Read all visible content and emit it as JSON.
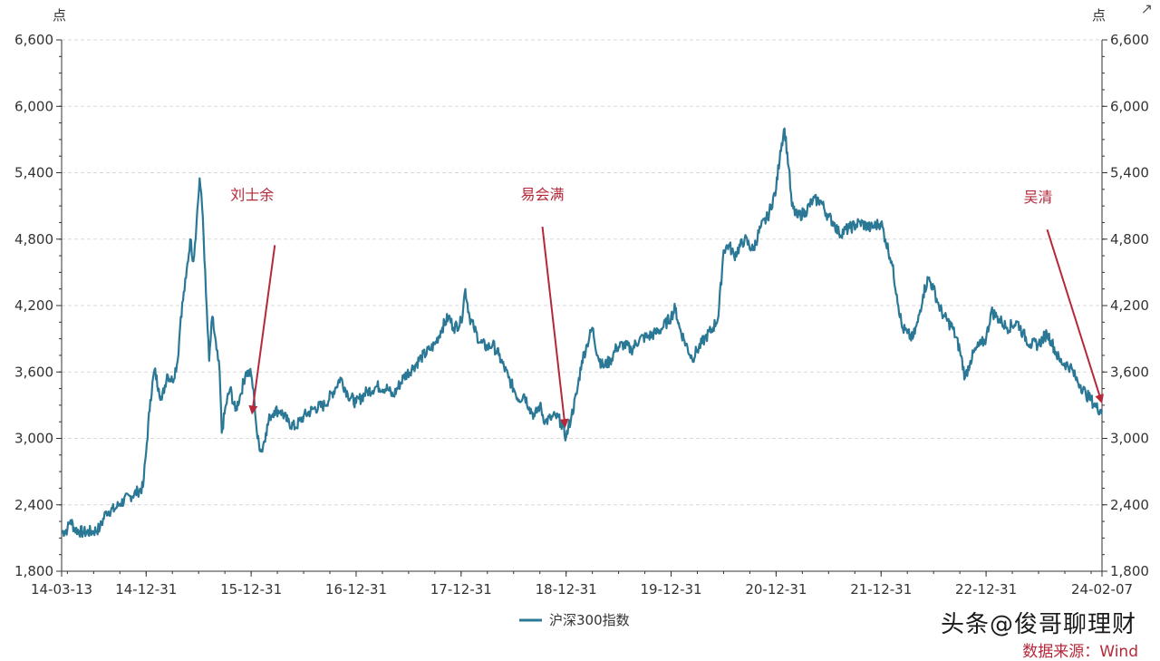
{
  "chart_data": {
    "type": "line",
    "title": "",
    "unit_left": "点",
    "unit_right": "点",
    "ylim": [
      1800,
      6600
    ],
    "yticks": [
      1800,
      2400,
      3000,
      3600,
      4200,
      4800,
      5400,
      6000,
      6600
    ],
    "ytick_labels": [
      "1,800",
      "2,400",
      "3,000",
      "3,600",
      "4,200",
      "4,800",
      "5,400",
      "6,000",
      "6,600"
    ],
    "xlim": [
      2014.195,
      2024.104
    ],
    "xticks": [
      2014.195,
      2015.0,
      2016.0,
      2017.0,
      2018.0,
      2019.0,
      2020.0,
      2021.0,
      2022.0,
      2023.0,
      2024.104
    ],
    "xtick_labels": [
      "14-03-13",
      "14-12-31",
      "15-12-31",
      "16-12-31",
      "17-12-31",
      "18-12-31",
      "19-12-31",
      "20-12-31",
      "21-12-31",
      "22-12-31",
      "24-02-07"
    ],
    "grid": true,
    "legend": "bottom-center",
    "series": [
      {
        "name": "沪深300指数",
        "color": "#2a7896",
        "points": [
          [
            2014.195,
            2150
          ],
          [
            2014.25,
            2180
          ],
          [
            2014.28,
            2260
          ],
          [
            2014.32,
            2180
          ],
          [
            2014.4,
            2150
          ],
          [
            2014.5,
            2160
          ],
          [
            2014.56,
            2190
          ],
          [
            2014.62,
            2340
          ],
          [
            2014.7,
            2360
          ],
          [
            2014.75,
            2410
          ],
          [
            2014.85,
            2480
          ],
          [
            2014.92,
            2520
          ],
          [
            2014.97,
            2560
          ],
          [
            2015.0,
            2880
          ],
          [
            2015.04,
            3350
          ],
          [
            2015.08,
            3620
          ],
          [
            2015.12,
            3450
          ],
          [
            2015.15,
            3350
          ],
          [
            2015.2,
            3580
          ],
          [
            2015.25,
            3520
          ],
          [
            2015.3,
            3700
          ],
          [
            2015.33,
            4100
          ],
          [
            2015.38,
            4450
          ],
          [
            2015.42,
            4800
          ],
          [
            2015.45,
            4600
          ],
          [
            2015.48,
            4950
          ],
          [
            2015.51,
            5350
          ],
          [
            2015.54,
            5000
          ],
          [
            2015.57,
            4300
          ],
          [
            2015.6,
            3700
          ],
          [
            2015.63,
            4100
          ],
          [
            2015.67,
            3800
          ],
          [
            2015.7,
            3600
          ],
          [
            2015.72,
            3050
          ],
          [
            2015.76,
            3300
          ],
          [
            2015.8,
            3450
          ],
          [
            2015.85,
            3250
          ],
          [
            2015.9,
            3400
          ],
          [
            2015.95,
            3600
          ],
          [
            2016.0,
            3580
          ],
          [
            2016.03,
            3350
          ],
          [
            2016.06,
            3000
          ],
          [
            2016.1,
            2880
          ],
          [
            2016.14,
            3050
          ],
          [
            2016.18,
            3200
          ],
          [
            2016.22,
            3250
          ],
          [
            2016.28,
            3250
          ],
          [
            2016.35,
            3150
          ],
          [
            2016.42,
            3100
          ],
          [
            2016.5,
            3200
          ],
          [
            2016.6,
            3270
          ],
          [
            2016.7,
            3300
          ],
          [
            2016.8,
            3450
          ],
          [
            2016.85,
            3550
          ],
          [
            2016.92,
            3400
          ],
          [
            2017.0,
            3320
          ],
          [
            2017.1,
            3420
          ],
          [
            2017.2,
            3470
          ],
          [
            2017.3,
            3450
          ],
          [
            2017.35,
            3380
          ],
          [
            2017.45,
            3550
          ],
          [
            2017.55,
            3650
          ],
          [
            2017.62,
            3730
          ],
          [
            2017.7,
            3800
          ],
          [
            2017.75,
            3850
          ],
          [
            2017.82,
            4000
          ],
          [
            2017.88,
            4100
          ],
          [
            2017.93,
            4000
          ],
          [
            2018.0,
            4050
          ],
          [
            2018.04,
            4350
          ],
          [
            2018.08,
            4100
          ],
          [
            2018.12,
            4000
          ],
          [
            2018.18,
            3870
          ],
          [
            2018.25,
            3820
          ],
          [
            2018.3,
            3850
          ],
          [
            2018.36,
            3750
          ],
          [
            2018.45,
            3550
          ],
          [
            2018.5,
            3450
          ],
          [
            2018.55,
            3350
          ],
          [
            2018.6,
            3400
          ],
          [
            2018.65,
            3280
          ],
          [
            2018.7,
            3200
          ],
          [
            2018.75,
            3300
          ],
          [
            2018.8,
            3150
          ],
          [
            2018.85,
            3180
          ],
          [
            2018.9,
            3200
          ],
          [
            2018.95,
            3150
          ],
          [
            2019.0,
            3010
          ],
          [
            2019.05,
            3200
          ],
          [
            2019.1,
            3400
          ],
          [
            2019.15,
            3700
          ],
          [
            2019.2,
            3850
          ],
          [
            2019.25,
            4000
          ],
          [
            2019.3,
            3750
          ],
          [
            2019.35,
            3650
          ],
          [
            2019.42,
            3700
          ],
          [
            2019.48,
            3820
          ],
          [
            2019.55,
            3850
          ],
          [
            2019.62,
            3800
          ],
          [
            2019.7,
            3900
          ],
          [
            2019.78,
            3920
          ],
          [
            2019.85,
            3950
          ],
          [
            2019.92,
            4000
          ],
          [
            2020.0,
            4100
          ],
          [
            2020.04,
            4180
          ],
          [
            2020.08,
            4000
          ],
          [
            2020.12,
            3900
          ],
          [
            2020.2,
            3720
          ],
          [
            2020.25,
            3800
          ],
          [
            2020.32,
            3900
          ],
          [
            2020.4,
            4000
          ],
          [
            2020.45,
            4100
          ],
          [
            2020.5,
            4700
          ],
          [
            2020.55,
            4750
          ],
          [
            2020.6,
            4650
          ],
          [
            2020.7,
            4800
          ],
          [
            2020.78,
            4700
          ],
          [
            2020.85,
            4900
          ],
          [
            2020.92,
            5000
          ],
          [
            2021.0,
            5250
          ],
          [
            2021.04,
            5600
          ],
          [
            2021.08,
            5800
          ],
          [
            2021.12,
            5450
          ],
          [
            2021.15,
            5100
          ],
          [
            2021.2,
            5000
          ],
          [
            2021.28,
            5050
          ],
          [
            2021.35,
            5150
          ],
          [
            2021.42,
            5150
          ],
          [
            2021.5,
            5000
          ],
          [
            2021.55,
            4950
          ],
          [
            2021.6,
            4850
          ],
          [
            2021.7,
            4900
          ],
          [
            2021.8,
            4950
          ],
          [
            2021.9,
            4900
          ],
          [
            2022.0,
            4950
          ],
          [
            2022.04,
            4800
          ],
          [
            2022.1,
            4600
          ],
          [
            2022.15,
            4300
          ],
          [
            2022.2,
            4000
          ],
          [
            2022.25,
            3950
          ],
          [
            2022.3,
            3900
          ],
          [
            2022.35,
            4050
          ],
          [
            2022.4,
            4300
          ],
          [
            2022.45,
            4450
          ],
          [
            2022.5,
            4350
          ],
          [
            2022.55,
            4200
          ],
          [
            2022.6,
            4100
          ],
          [
            2022.68,
            4000
          ],
          [
            2022.75,
            3800
          ],
          [
            2022.8,
            3550
          ],
          [
            2022.85,
            3700
          ],
          [
            2022.9,
            3800
          ],
          [
            2022.95,
            3850
          ],
          [
            2023.0,
            3900
          ],
          [
            2023.05,
            4150
          ],
          [
            2023.1,
            4100
          ],
          [
            2023.15,
            4050
          ],
          [
            2023.2,
            4000
          ],
          [
            2023.3,
            4050
          ],
          [
            2023.35,
            3950
          ],
          [
            2023.42,
            3850
          ],
          [
            2023.5,
            3850
          ],
          [
            2023.58,
            3950
          ],
          [
            2023.62,
            3880
          ],
          [
            2023.7,
            3700
          ],
          [
            2023.8,
            3650
          ],
          [
            2023.85,
            3550
          ],
          [
            2023.9,
            3480
          ],
          [
            2023.95,
            3400
          ],
          [
            2024.0,
            3350
          ],
          [
            2024.05,
            3280
          ],
          [
            2024.104,
            3250
          ]
        ]
      }
    ],
    "annotations": [
      {
        "text": "刘士余",
        "date": 2016.01,
        "value": 3230
      },
      {
        "text": "易会满",
        "date": 2018.99,
        "value": 3110
      },
      {
        "text": "吴清",
        "date": 2024.1,
        "value": 3330
      }
    ]
  },
  "watermark": "头条@俊哥聊理财",
  "source": "数据来源：Wind",
  "expand_icon": "expand-icon"
}
